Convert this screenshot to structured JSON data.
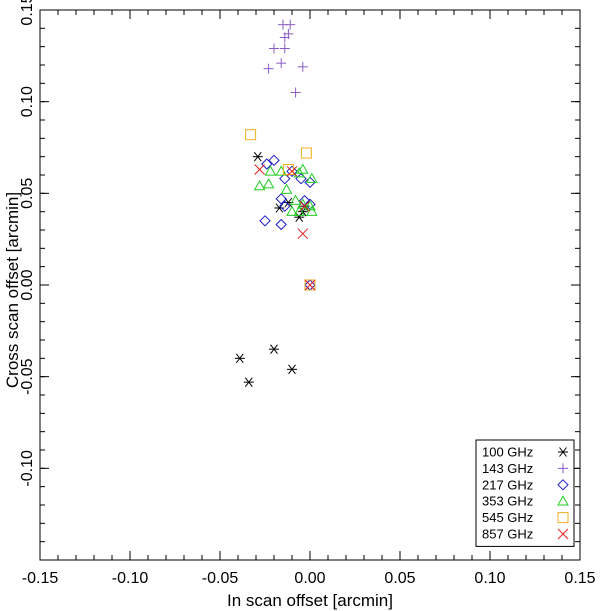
{
  "chart_data": {
    "type": "scatter",
    "title": "",
    "xlabel": "In scan offset [arcmin]",
    "ylabel": "Cross scan offset [arcmin]",
    "xlim": [
      -0.15,
      0.15
    ],
    "ylim": [
      -0.15,
      0.15
    ],
    "xticks": [
      -0.15,
      -0.1,
      -0.05,
      0.0,
      0.05,
      0.1,
      0.15
    ],
    "xtick_labels": [
      "-0.15",
      "-0.10",
      "-0.05",
      "0.00",
      "0.05",
      "0.10",
      "0.15"
    ],
    "yticks": [
      -0.1,
      -0.05,
      0.0,
      0.05,
      0.1,
      0.15
    ],
    "ytick_labels": [
      "-0.10",
      "-0.05",
      "0.00",
      "0.05",
      "0.10",
      "0.15"
    ],
    "grid": false,
    "legend_position": "bottom-right",
    "series": [
      {
        "name": "100 GHz",
        "marker": "asterisk",
        "color": "#000000",
        "points": [
          [
            -0.029,
            0.07
          ],
          [
            -0.017,
            0.042
          ],
          [
            -0.012,
            0.045
          ],
          [
            -0.006,
            0.037
          ],
          [
            -0.004,
            0.04
          ],
          [
            -0.039,
            -0.04
          ],
          [
            -0.034,
            -0.053
          ],
          [
            -0.02,
            -0.035
          ],
          [
            -0.01,
            -0.046
          ],
          [
            -0.003,
            0.043
          ]
        ]
      },
      {
        "name": "143 GHz",
        "marker": "plus",
        "color": "#8a5cc8",
        "points": [
          [
            -0.015,
            0.142
          ],
          [
            -0.011,
            0.142
          ],
          [
            -0.014,
            0.135
          ],
          [
            -0.012,
            0.137
          ],
          [
            -0.02,
            0.129
          ],
          [
            -0.014,
            0.129
          ],
          [
            -0.023,
            0.118
          ],
          [
            -0.016,
            0.121
          ],
          [
            -0.004,
            0.119
          ],
          [
            -0.008,
            0.105
          ]
        ]
      },
      {
        "name": "217 GHz",
        "marker": "diamond",
        "color": "#1a1ac8",
        "points": [
          [
            -0.024,
            0.066
          ],
          [
            -0.02,
            0.068
          ],
          [
            -0.014,
            0.058
          ],
          [
            -0.01,
            0.062
          ],
          [
            -0.005,
            0.058
          ],
          [
            0.0,
            0.056
          ],
          [
            -0.016,
            0.047
          ],
          [
            -0.014,
            0.043
          ],
          [
            -0.025,
            0.035
          ],
          [
            -0.016,
            0.033
          ],
          [
            -0.003,
            0.046
          ],
          [
            0.0,
            0.044
          ],
          [
            0.0,
            0.0
          ]
        ]
      },
      {
        "name": "353 GHz",
        "marker": "triangle",
        "color": "#22cc22",
        "points": [
          [
            -0.022,
            0.062
          ],
          [
            -0.016,
            0.062
          ],
          [
            -0.006,
            0.061
          ],
          [
            -0.004,
            0.063
          ],
          [
            0.001,
            0.058
          ],
          [
            -0.028,
            0.054
          ],
          [
            -0.023,
            0.055
          ],
          [
            -0.013,
            0.052
          ],
          [
            -0.008,
            0.046
          ],
          [
            -0.004,
            0.044
          ],
          [
            0.0,
            0.043
          ],
          [
            -0.006,
            0.04
          ],
          [
            -0.01,
            0.04
          ],
          [
            0.001,
            0.04
          ]
        ]
      },
      {
        "name": "545 GHz",
        "marker": "square",
        "color": "#f0b020",
        "points": [
          [
            -0.033,
            0.082
          ],
          [
            -0.002,
            0.072
          ],
          [
            -0.012,
            0.063
          ],
          [
            0.0,
            0.0
          ]
        ]
      },
      {
        "name": "857 GHz",
        "marker": "x",
        "color": "#e02020",
        "points": [
          [
            -0.028,
            0.063
          ],
          [
            -0.01,
            0.062
          ],
          [
            -0.004,
            0.028
          ],
          [
            -0.003,
            0.043
          ],
          [
            0.0,
            0.0
          ]
        ]
      }
    ]
  }
}
